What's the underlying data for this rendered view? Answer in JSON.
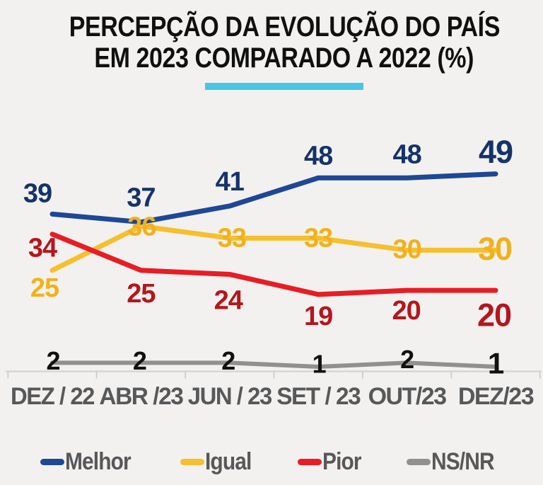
{
  "title": {
    "line1": "PERCEPÇÃO DA EVOLUÇÃO DO PAÍS",
    "line2": "EM 2023 COMPARADO A 2022 (%)",
    "underline_color": "#49c5e5"
  },
  "chart_data": {
    "type": "line",
    "categories": [
      "DEZ / 22",
      "ABR /23",
      "JUN / 23",
      "SET / 23",
      "OUT/23",
      "DEZ/23"
    ],
    "series": [
      {
        "name": "Melhor",
        "values": [
          39,
          37,
          41,
          48,
          48,
          49
        ],
        "color": "#1e4796",
        "label_color": "#153369"
      },
      {
        "name": "Igual",
        "values": [
          25,
          36,
          33,
          33,
          30,
          30
        ],
        "color": "#f6bf2d",
        "label_color": "#f2b11c"
      },
      {
        "name": "Pior",
        "values": [
          34,
          25,
          24,
          19,
          20,
          20
        ],
        "color": "#e81c24",
        "label_color": "#b4161c"
      },
      {
        "name": "NS/NR",
        "values": [
          2,
          2,
          2,
          1,
          2,
          1
        ],
        "color": "#909090",
        "label_color": "#111111"
      }
    ],
    "ylim": [
      0,
      55
    ],
    "xlabel": "",
    "ylabel": "",
    "grid": false,
    "data_labels": true,
    "legend_position": "bottom",
    "axis_color": "#d0d0cf",
    "xtick_label_color": "#57585a"
  },
  "legend": {
    "items": [
      {
        "label": "Melhor",
        "color": "#1e4796"
      },
      {
        "label": "Igual",
        "color": "#f6bf2d"
      },
      {
        "label": "Pior",
        "color": "#e81c24"
      },
      {
        "label": "NS/NR",
        "color": "#909090"
      }
    ],
    "text_color": "#58585a"
  }
}
